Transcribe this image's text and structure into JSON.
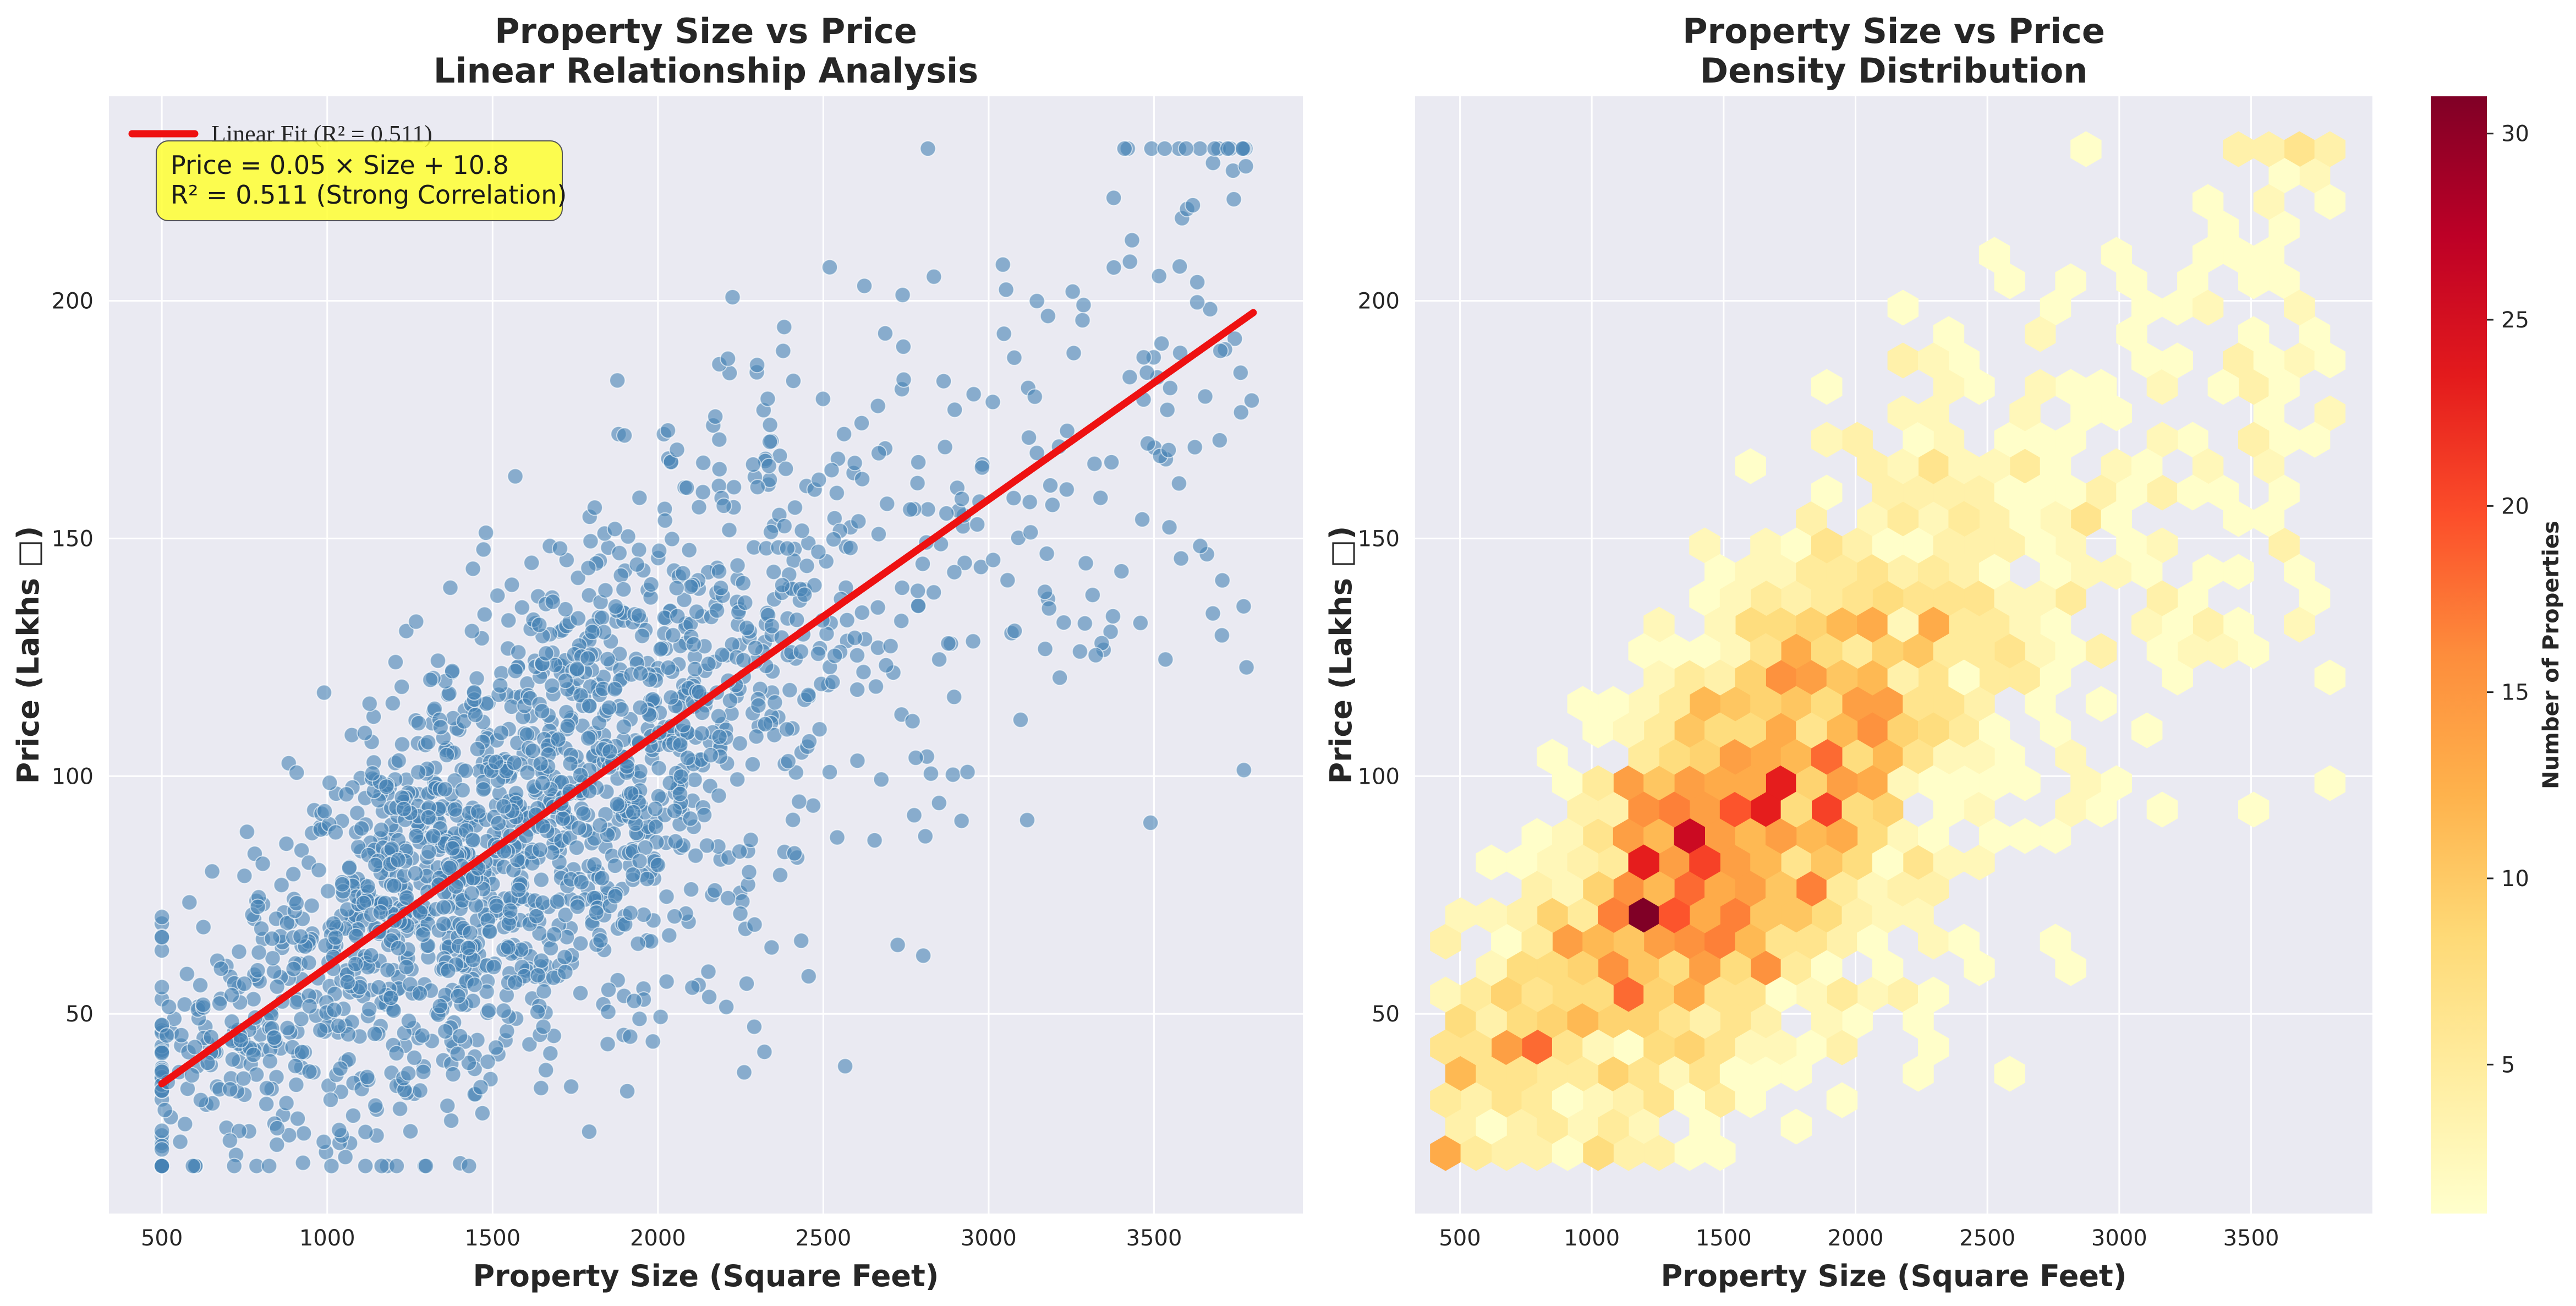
{
  "figure": {
    "left_title_line1": "Property Size vs Price",
    "left_title_line2": "Linear Relationship Analysis",
    "right_title_line1": "Property Size vs Price",
    "right_title_line2": "Density Distribution",
    "xlabel": "Property Size (Square Feet)",
    "ylabel": "Price (Lakhs □)",
    "colorbar_label": "Number of Properties",
    "legend_label": "Linear Fit (R² = 0.511)",
    "annotation_line1": "Price = 0.05 × Size + 10.8",
    "annotation_line2": "R² = 0.511 (Strong Correlation)",
    "colors": {
      "axes_bg": "#eaeaf2",
      "scatter_point": "#4682b4",
      "fit_line": "#ee1111",
      "annotation_bg": "#ffff33",
      "grid": "#ffffff"
    }
  },
  "chart_data": [
    {
      "type": "scatter",
      "title": "Property Size vs Price\nLinear Relationship Analysis",
      "xlabel": "Property Size (Square Feet)",
      "ylabel": "Price (Lakhs □)",
      "xlim": [
        340,
        3950
      ],
      "ylim": [
        8,
        243
      ],
      "xticks": [
        500,
        1000,
        1500,
        2000,
        2500,
        3000,
        3500
      ],
      "yticks": [
        50,
        100,
        150,
        200
      ],
      "grid": true,
      "legend_position": "top-left",
      "n_points": 2000,
      "size_range": [
        500,
        3800
      ],
      "fit": {
        "slope": 0.05,
        "intercept": 10.8,
        "r2": 0.511,
        "x_range": [
          500,
          3800
        ],
        "y_range": [
          35.3,
          197.5
        ],
        "label": "Linear Fit (R² = 0.511)"
      },
      "annotation": [
        "Price = 0.05 × Size + 10.8",
        "R² = 0.511 (Strong Correlation)"
      ]
    },
    {
      "type": "heatmap",
      "subtype": "hexbin",
      "title": "Property Size vs Price\nDensity Distribution",
      "xlabel": "Property Size (Square Feet)",
      "ylabel": "Price (Lakhs □)",
      "xlim": [
        330,
        3960
      ],
      "ylim": [
        8,
        243
      ],
      "xticks": [
        500,
        1000,
        1500,
        2000,
        2500,
        3000,
        3500
      ],
      "yticks": [
        50,
        100,
        150,
        200
      ],
      "colormap": "YlOrRd",
      "color_range": [
        1,
        31
      ],
      "colorbar_ticks": [
        5,
        10,
        15,
        20,
        25,
        30
      ],
      "colorbar_label": "Number of Properties",
      "peak_cells": [
        {
          "x": 1200,
          "y": 64,
          "count": 28
        },
        {
          "x": 1440,
          "y": 64,
          "count": 31
        },
        {
          "x": 1360,
          "y": 77,
          "count": 27
        },
        {
          "x": 1000,
          "y": 52,
          "count": 21
        },
        {
          "x": 1700,
          "y": 103,
          "count": 20
        },
        {
          "x": 1600,
          "y": 90,
          "count": 21
        }
      ]
    }
  ]
}
